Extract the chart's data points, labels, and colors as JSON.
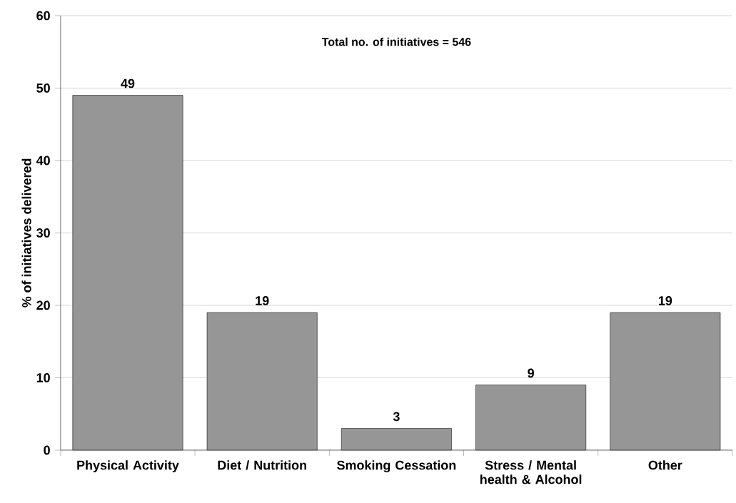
{
  "chart_data": {
    "type": "bar",
    "categories": [
      "Physical Activity",
      "Diet / Nutrition",
      "Smoking Cessation",
      "Stress / Mental health & Alcohol",
      "Other"
    ],
    "values": [
      49,
      19,
      3,
      9,
      19
    ],
    "color": "#969696",
    "ylabel": "% of initiatives delivered",
    "ylim": [
      0,
      60
    ],
    "yticks": [
      0,
      10,
      20,
      30,
      40,
      50,
      60
    ],
    "grid": "y",
    "data_labels": true,
    "annotations": [
      "Total no. of initiatives = 546"
    ]
  }
}
